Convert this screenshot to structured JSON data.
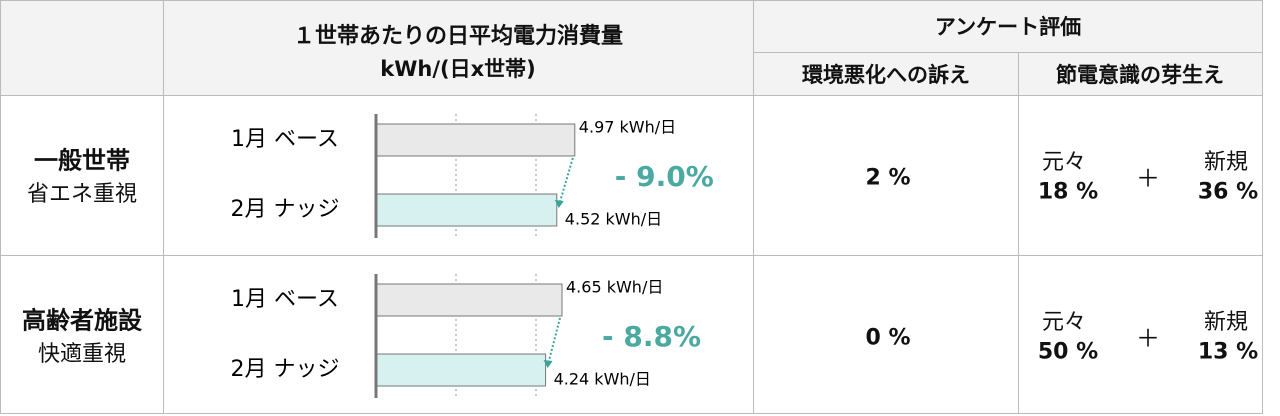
{
  "header": {
    "consumption_title": "１世帯あたりの日平均電力消費量",
    "consumption_unit": "kWh/(日x世帯)",
    "survey_title": "アンケート評価",
    "survey_columns": [
      "環境悪化への訴え",
      "節電意識の芽生え"
    ]
  },
  "rows": [
    {
      "name": "一般世帯",
      "subtitle": "省エネ重視",
      "chart": {
        "type": "bar",
        "categories": [
          "1月 ベース",
          "2月 ナッジ"
        ],
        "values": [
          4.97,
          4.52
        ],
        "value_labels": [
          "4.97 kWh/日",
          "4.52 kWh/日"
        ],
        "colors": [
          "#e9e9e9",
          "#d6f1ef"
        ],
        "xlim": [
          0,
          6
        ],
        "change": "- 9.0%"
      },
      "appeal": "2 %",
      "awareness": {
        "before_label": "元々",
        "before": "18 %",
        "plus": "＋",
        "new_label": "新規",
        "new": "36 %"
      }
    },
    {
      "name": "高齢者施設",
      "subtitle": "快適重視",
      "chart": {
        "type": "bar",
        "categories": [
          "1月 ベース",
          "2月 ナッジ"
        ],
        "values": [
          4.65,
          4.24
        ],
        "value_labels": [
          "4.65 kWh/日",
          "4.24 kWh/日"
        ],
        "colors": [
          "#e9e9e9",
          "#d6f1ef"
        ],
        "xlim": [
          0,
          6
        ],
        "change": "- 8.8%"
      },
      "appeal": "0 %",
      "awareness": {
        "before_label": "元々",
        "before": "50 %",
        "plus": "＋",
        "new_label": "新規",
        "new": "13 %"
      }
    }
  ]
}
